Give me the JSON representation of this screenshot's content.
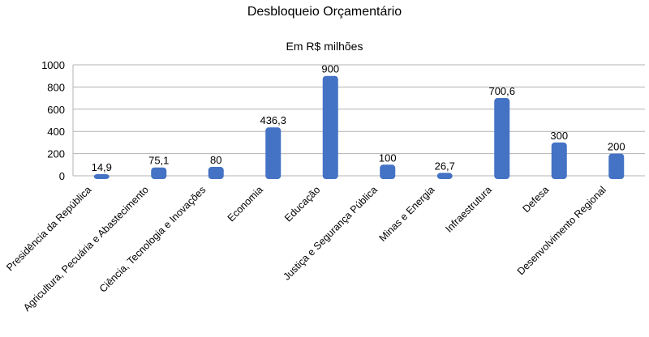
{
  "chart_data": {
    "type": "bar",
    "title": "Desbloqueio Orçamentário",
    "subtitle": "Em R$ milhões",
    "categories": [
      "Presidência da República",
      "Agricultura, Pecuária e Abastecimento",
      "Ciência, Tecnologia e Inovações",
      "Economia",
      "Educação",
      "Justiça e Segurança Pública",
      "Minas e Energia",
      "Infraestrutura",
      "Defesa",
      "Desenvolvimento Regional"
    ],
    "values": [
      14.9,
      75.1,
      80,
      436.3,
      900,
      100,
      26.7,
      700.6,
      300,
      200
    ],
    "value_labels": [
      "14,9",
      "75,1",
      "80",
      "436,3",
      "900",
      "100",
      "26,7",
      "700,6",
      "300",
      "200"
    ],
    "ylim": [
      0,
      1000
    ],
    "yticks": [
      0,
      200,
      400,
      600,
      800,
      1000
    ],
    "grid": true,
    "legend": "none",
    "colors": {
      "bar": "#4472c4",
      "grid": "#b3b3b3",
      "axis": "#b3b3b3"
    }
  }
}
